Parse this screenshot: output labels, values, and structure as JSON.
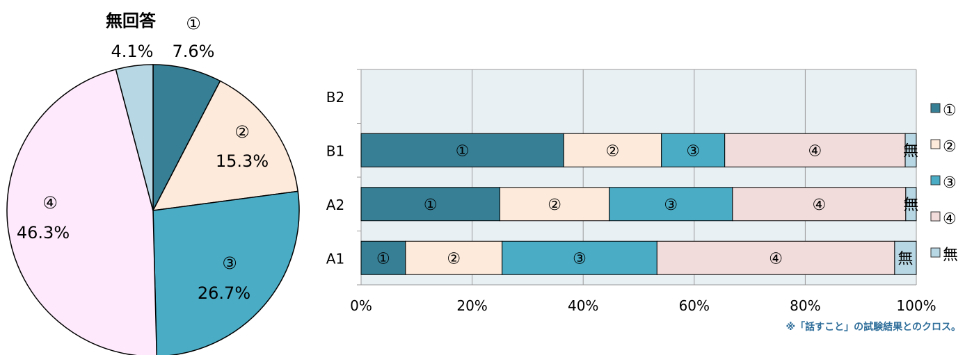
{
  "colors": {
    "s1": "#367f95",
    "s2": "#fdeadb",
    "s3": "#4aacc5",
    "s4": "#f2dcdb",
    "none": "#b7d7e4",
    "pie4": "#fde9fb",
    "plot_bg": "#e9f0f4",
    "grid": "#9a9a9a",
    "note": "#2f6e9a"
  },
  "note": "※「話すこと」の試験結果とのクロス。",
  "chart_data": [
    {
      "type": "pie",
      "title": "",
      "slices": [
        {
          "name": "①",
          "value": 7.6,
          "label": "7.6%",
          "color": "#367f95"
        },
        {
          "name": "②",
          "value": 15.3,
          "label": "15.3%",
          "color": "#fdeadb"
        },
        {
          "name": "③",
          "value": 26.7,
          "label": "26.7%",
          "color": "#4aacc5"
        },
        {
          "name": "④",
          "value": 46.3,
          "label": "46.3%",
          "color": "#fde9fb"
        },
        {
          "name": "無回答",
          "value": 4.1,
          "label": "4.1%",
          "color": "#b7d7e4"
        }
      ]
    },
    {
      "type": "bar",
      "orientation": "horizontal",
      "stacked": "percent",
      "categories": [
        "A1",
        "A2",
        "B1",
        "B2"
      ],
      "xlim": [
        0,
        100
      ],
      "xticks": [
        "0%",
        "20%",
        "40%",
        "60%",
        "80%",
        "100%"
      ],
      "grid": true,
      "legend": "right",
      "series": [
        {
          "name": "①",
          "seg_label": "①",
          "color": "#367f95",
          "values": [
            8.0,
            25.0,
            36.5,
            0
          ]
        },
        {
          "name": "②",
          "seg_label": "②",
          "color": "#fdeadb",
          "values": [
            17.4,
            19.7,
            17.6,
            0
          ]
        },
        {
          "name": "③",
          "seg_label": "③",
          "color": "#4aacc5",
          "values": [
            27.9,
            22.2,
            11.4,
            0
          ]
        },
        {
          "name": "④",
          "seg_label": "④",
          "color": "#f2dcdb",
          "values": [
            42.8,
            31.2,
            32.5,
            0
          ]
        },
        {
          "name": "無",
          "seg_label": "無",
          "color": "#b7d7e4",
          "values": [
            3.9,
            1.9,
            2.0,
            0
          ]
        }
      ]
    }
  ]
}
